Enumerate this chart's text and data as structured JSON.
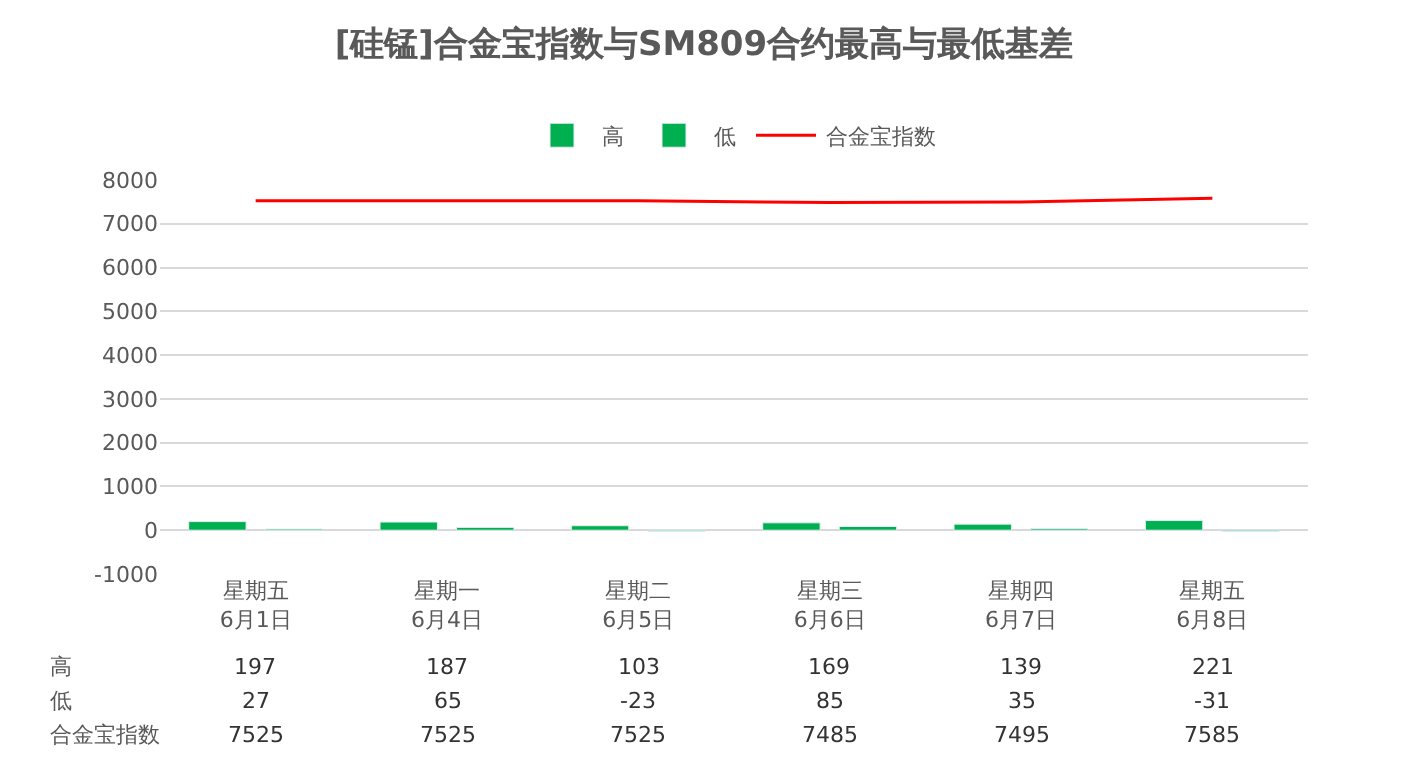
{
  "chart_data": {
    "type": "bar",
    "title": "[硅锰]合金宝指数与SM809合约最高与最低基差",
    "categories": [
      "星期五\n6月1日",
      "星期一\n6月4日",
      "星期二\n6月5日",
      "星期三\n6月6日",
      "星期四\n6月7日",
      "星期五\n6月8日"
    ],
    "series": [
      {
        "name": "高",
        "color": "#00b050",
        "values": [
          197,
          187,
          103,
          169,
          139,
          221
        ]
      },
      {
        "name": "低",
        "color": "#00b050",
        "values": [
          27,
          65,
          -23,
          85,
          35,
          -31
        ]
      },
      {
        "name": "合金宝指数",
        "type": "line",
        "color": "#ff0000",
        "values": [
          7525,
          7525,
          7525,
          7485,
          7495,
          7585
        ]
      }
    ],
    "ylim": [
      -1000,
      8000
    ],
    "yticks": [
      -1000,
      0,
      1000,
      2000,
      3000,
      4000,
      5000,
      6000,
      7000,
      8000
    ],
    "grid": "y",
    "legend": "top",
    "data_labels": true
  }
}
